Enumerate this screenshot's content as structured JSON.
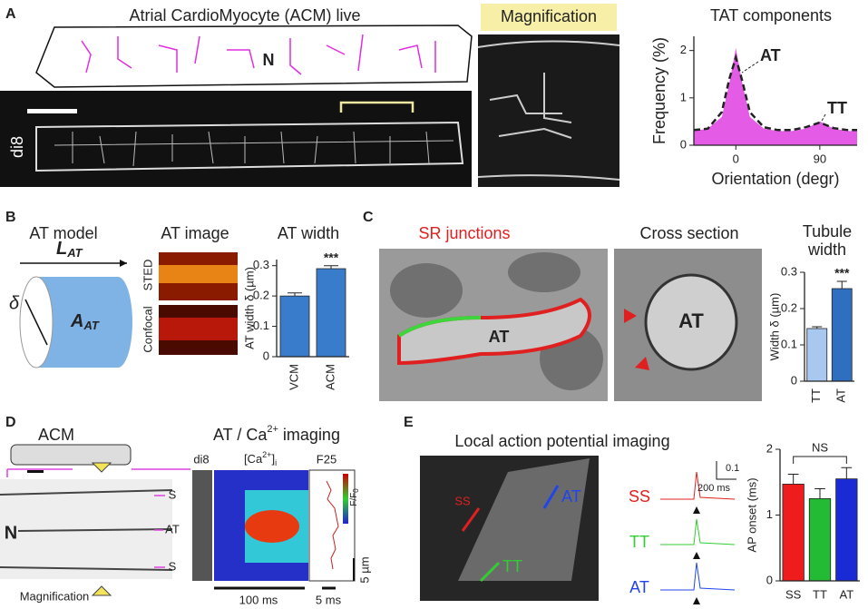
{
  "figure": {
    "letters": [
      "A",
      "B",
      "C",
      "D",
      "E"
    ],
    "a": {
      "title": "Atrial CardioMyocyte (ACM) live",
      "nucleus": "N",
      "dye": "di8",
      "magnification": "Magnification"
    },
    "b": {
      "model": "AT model",
      "length": {
        "main": "L",
        "sub": "AT"
      },
      "delta": "δ",
      "area": {
        "main": "A",
        "sub": "AT"
      },
      "image": "AT image",
      "sted": "STED",
      "confocal": "Confocal"
    },
    "c": {
      "sr": "SR junctions",
      "cross": "Cross section",
      "em_label": "AT",
      "cross_label": "AT"
    },
    "d": {
      "acm": "ACM",
      "nucleus": "N",
      "rows": [
        "S",
        "AT",
        "S"
      ],
      "magnification": "Magnification",
      "title": {
        "pre": "AT / Ca",
        "sup": "2+",
        "post": " imaging"
      },
      "dye": "di8",
      "ca": {
        "pre": "[Ca",
        "sup": "2+",
        "post": "]",
        "sub": "i"
      },
      "f25": "F25",
      "cbar": {
        "main": "F/F",
        "sub": "0"
      },
      "space": "5 µm",
      "time": "100 ms",
      "time2": "5 ms"
    },
    "e": {
      "title": "Local action potential imaging",
      "image_labels": [
        "SS",
        "AT",
        "TT"
      ],
      "trace_labels": [
        "SS",
        "TT",
        "AT"
      ],
      "scale_v": "0.1",
      "scale_t": "200 ms"
    }
  },
  "chart_data": [
    {
      "type": "area",
      "title": "TAT components",
      "xlabel": "Orientation (degr)",
      "ylabel": "Frequency (%)",
      "x": [
        -45,
        -30,
        -15,
        -7,
        0,
        7,
        15,
        30,
        45,
        60,
        75,
        90,
        105,
        120,
        130
      ],
      "series": [
        {
          "color": "#e45ce6",
          "values": [
            0.3,
            0.35,
            0.6,
            1.3,
            2.05,
            1.3,
            0.6,
            0.35,
            0.3,
            0.3,
            0.35,
            0.5,
            0.35,
            0.3,
            0.3
          ]
        },
        {
          "color": "#222222",
          "values": [
            0.32,
            0.35,
            0.7,
            1.4,
            1.85,
            1.35,
            0.7,
            0.38,
            0.32,
            0.32,
            0.38,
            0.48,
            0.36,
            0.32,
            0.32
          ]
        }
      ],
      "annotations": [
        "AT",
        "TT"
      ],
      "xlim": [
        -45,
        130
      ],
      "xticks": [
        0,
        90
      ],
      "ylim": [
        0,
        2.3
      ],
      "yticks": [
        0,
        1,
        2
      ]
    },
    {
      "type": "bar",
      "title": "AT width",
      "ylabel": "AT width δ (µm)",
      "categories": [
        "VCM",
        "ACM"
      ],
      "values": [
        0.2,
        0.29
      ],
      "errors": [
        0.01,
        0.01
      ],
      "colors": [
        "#3a7ccc",
        "#3a7ccc"
      ],
      "annotation": "***",
      "ylim": [
        0,
        0.32
      ],
      "yticks": [
        0,
        0.1,
        0.2,
        0.3
      ]
    },
    {
      "type": "bar",
      "title": [
        "Tubule",
        "width"
      ],
      "ylabel": "Width δ (µm)",
      "categories": [
        "TT",
        "AT"
      ],
      "values": [
        0.145,
        0.255
      ],
      "errors": [
        0.005,
        0.02
      ],
      "colors": [
        "#a9c8ef",
        "#2f6fbf"
      ],
      "annotation": "***",
      "ylim": [
        0,
        0.3
      ],
      "yticks": [
        0,
        0.1,
        0.2,
        0.3
      ]
    },
    {
      "type": "bar",
      "ylabel": "AP onset (ms)",
      "categories": [
        "SS",
        "TT",
        "AT"
      ],
      "values": [
        1.47,
        1.25,
        1.55
      ],
      "errors": [
        0.15,
        0.15,
        0.17
      ],
      "colors": [
        "#ee1c1c",
        "#22bb33",
        "#1a2bd6"
      ],
      "annotation": "NS",
      "ylim": [
        0,
        2
      ],
      "yticks": [
        0,
        1,
        2
      ]
    }
  ]
}
